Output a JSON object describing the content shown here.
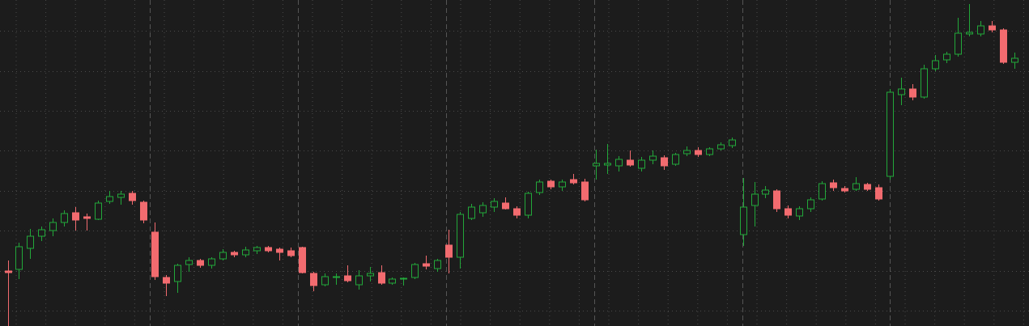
{
  "chart_data": {
    "type": "candlestick",
    "ylim": [
      0,
      403
    ],
    "yticks": [
      19,
      68,
      118,
      167,
      217,
      266,
      315,
      365
    ],
    "grid": true,
    "up_color": "#22a83a",
    "down_color": "#f26b6f",
    "open": [
      68,
      70,
      96,
      111,
      118,
      128,
      140,
      135,
      132,
      154,
      159,
      164,
      153,
      116,
      60,
      55,
      76,
      81,
      75,
      83,
      91,
      88,
      93,
      97,
      95,
      93,
      97,
      65,
      51,
      60,
      62,
      51,
      62,
      66,
      53,
      58,
      60,
      77,
      71,
      100,
      85,
      133,
      140,
      147,
      152,
      145,
      137,
      165,
      179,
      172,
      181,
      178,
      198,
      199,
      198,
      205,
      195,
      205,
      208,
      200,
      213,
      217,
      212,
      219,
      223,
      113,
      149,
      163,
      167,
      145,
      136,
      145,
      157,
      177,
      170,
      169,
      175,
      171,
      185,
      286,
      293,
      283,
      318,
      329,
      336,
      361,
      361,
      371,
      366,
      326
    ],
    "high": [
      81,
      103,
      120,
      123,
      133,
      143,
      147,
      139,
      155,
      167,
      167,
      167,
      155,
      128,
      63,
      77,
      85,
      83,
      85,
      95,
      93,
      98,
      99,
      99,
      97,
      97,
      98,
      67,
      65,
      65,
      75,
      69,
      73,
      75,
      60,
      60,
      78,
      87,
      83,
      119,
      141,
      151,
      153,
      158,
      159,
      148,
      166,
      181,
      181,
      181,
      188,
      182,
      218,
      225,
      210,
      217,
      209,
      217,
      211,
      214,
      222,
      221,
      221,
      227,
      233,
      183,
      178,
      173,
      169,
      149,
      148,
      159,
      179,
      181,
      173,
      184,
      177,
      175,
      293,
      307,
      299,
      323,
      335,
      339,
      381,
      398,
      377,
      377,
      368,
      338
    ],
    "low": [
      0,
      58,
      83,
      105,
      111,
      123,
      118,
      118,
      131,
      151,
      150,
      150,
      127,
      57,
      37,
      41,
      67,
      72,
      71,
      81,
      85,
      85,
      89,
      91,
      81,
      85,
      65,
      43,
      49,
      51,
      54,
      45,
      55,
      51,
      51,
      50,
      58,
      70,
      67,
      65,
      71,
      131,
      135,
      141,
      144,
      133,
      133,
      162,
      169,
      167,
      175,
      154,
      181,
      188,
      191,
      197,
      191,
      200,
      193,
      198,
      210,
      209,
      210,
      217,
      220,
      99,
      123,
      158,
      141,
      133,
      131,
      141,
      155,
      167,
      165,
      167,
      167,
      155,
      181,
      273,
      279,
      281,
      315,
      325,
      333,
      358,
      358,
      363,
      324,
      318
    ],
    "close": [
      66,
      98,
      111,
      119,
      128,
      139,
      131,
      133,
      152,
      160,
      163,
      155,
      131,
      61,
      53,
      75,
      81,
      75,
      83,
      91,
      88,
      94,
      97,
      93,
      91,
      87,
      66,
      50,
      61,
      61,
      56,
      62,
      65,
      53,
      58,
      59,
      76,
      74,
      81,
      85,
      138,
      147,
      149,
      154,
      145,
      137,
      164,
      178,
      172,
      178,
      177,
      156,
      201,
      201,
      206,
      199,
      205,
      210,
      198,
      212,
      217,
      212,
      219,
      224,
      230,
      147,
      163,
      168,
      145,
      137,
      145,
      156,
      176,
      171,
      167,
      176,
      169,
      157,
      289,
      293,
      283,
      318,
      328,
      336,
      362,
      363,
      371,
      366,
      326,
      331
    ]
  }
}
